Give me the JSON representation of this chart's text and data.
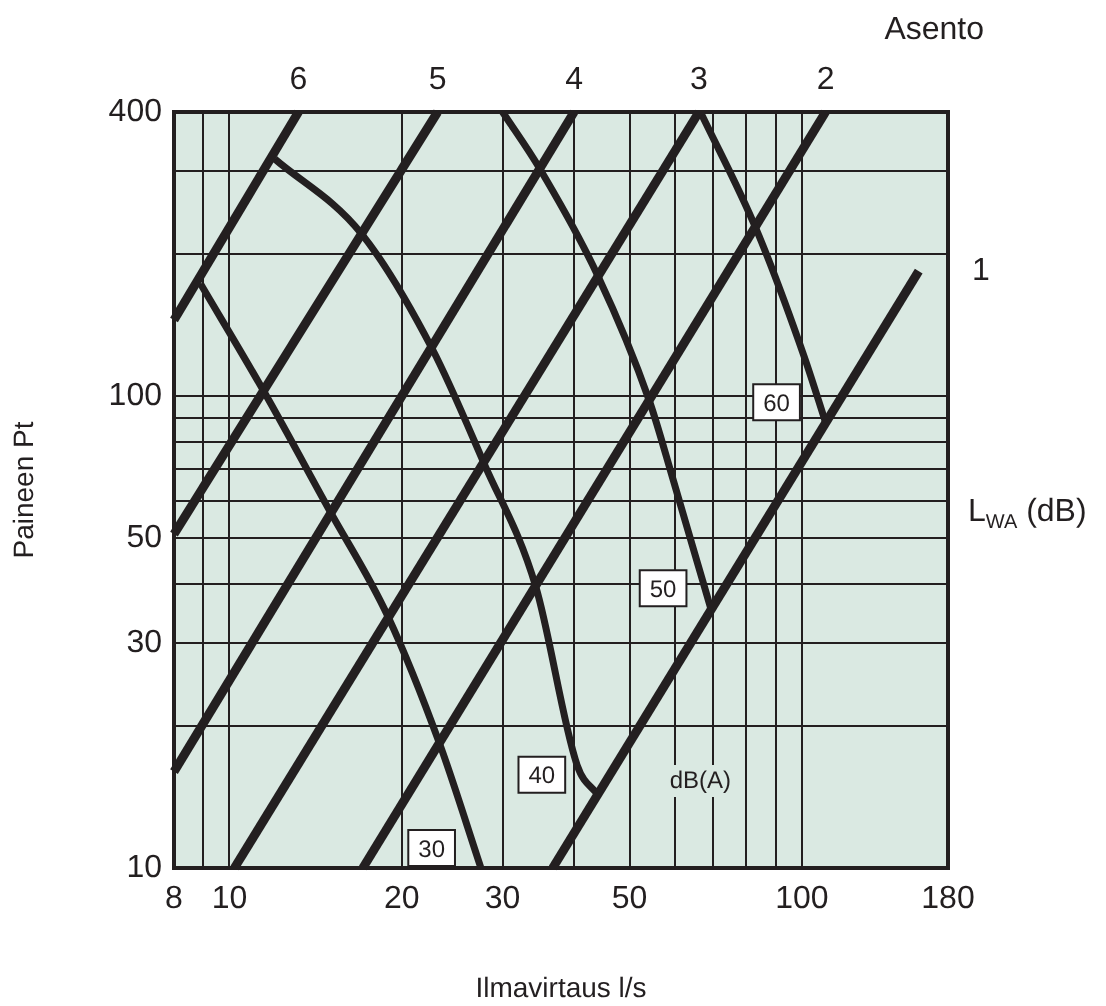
{
  "chart_data": {
    "type": "line",
    "xlabel": "Ilmavirtaus l/s",
    "ylabel": "Paineen Pt",
    "log": "xy",
    "grid": true,
    "legend": false,
    "marker": "none",
    "line_style": "solid",
    "xlim": [
      8,
      180
    ],
    "xticks": [
      8,
      {
        "value": 9,
        "label": null
      },
      10,
      20,
      30,
      {
        "value": 40,
        "label": null
      },
      50,
      {
        "value": 60,
        "label": null
      },
      {
        "value": 70,
        "label": null
      },
      {
        "value": 80,
        "label": null
      },
      {
        "value": 90,
        "label": null
      },
      100,
      180
    ],
    "ylim": [
      10,
      400
    ],
    "yticks": [
      10,
      {
        "value": 20,
        "label": null
      },
      30,
      {
        "value": 40,
        "label": null
      },
      50,
      {
        "value": 60,
        "label": null
      },
      {
        "value": 70,
        "label": null
      },
      {
        "value": 80,
        "label": null
      },
      {
        "value": 90,
        "label": null
      },
      100,
      {
        "value": 200,
        "label": null
      },
      {
        "value": 300,
        "label": null
      },
      400
    ],
    "series": [
      {
        "name": "6",
        "color": "#231f20",
        "x": [
          8,
          13.2
        ],
        "values": [
          145,
          400
        ]
      },
      {
        "name": "5",
        "color": "#231f20",
        "x": [
          8,
          23.1
        ],
        "values": [
          51,
          400
        ]
      },
      {
        "name": "4",
        "color": "#231f20",
        "x": [
          8,
          40
        ],
        "values": [
          16,
          400
        ]
      },
      {
        "name": "3",
        "color": "#231f20",
        "x": [
          10.2,
          66.1
        ],
        "values": [
          10,
          400
        ]
      },
      {
        "name": "2",
        "color": "#231f20",
        "x": [
          17.1,
          110
        ],
        "values": [
          10,
          400
        ]
      },
      {
        "name": "1",
        "color": "#231f20",
        "x": [
          36.7,
          160
        ],
        "values": [
          10,
          184
        ]
      },
      {
        "name": "30",
        "color": "#231f20",
        "x": [
          8.9,
          11.5,
          14.9,
          18.9,
          23.3,
          27.5
        ],
        "values": [
          173,
          102,
          57.7,
          34.2,
          18.3,
          10
        ]
      },
      {
        "name": "40",
        "color": "#231f20",
        "x": [
          12,
          17,
          22.6,
          27.9,
          34.3,
          40.5,
          44
        ],
        "values": [
          318,
          221,
          126,
          71.6,
          39.4,
          16.5,
          14.3
        ]
      },
      {
        "name": "50",
        "color": "#231f20",
        "x": [
          30,
          34.8,
          44,
          54.1,
          59.6,
          69.3
        ],
        "values": [
          400,
          304,
          180,
          98,
          66.4,
          35.5
        ]
      },
      {
        "name": "60",
        "color": "#231f20",
        "x": [
          66.5,
          83.2,
          101,
          110
        ],
        "values": [
          400,
          226,
          121,
          88
        ]
      }
    ],
    "annotations": [
      "Asento",
      "L$_{WA}$ (dB)",
      "dB(A)"
    ]
  }
}
